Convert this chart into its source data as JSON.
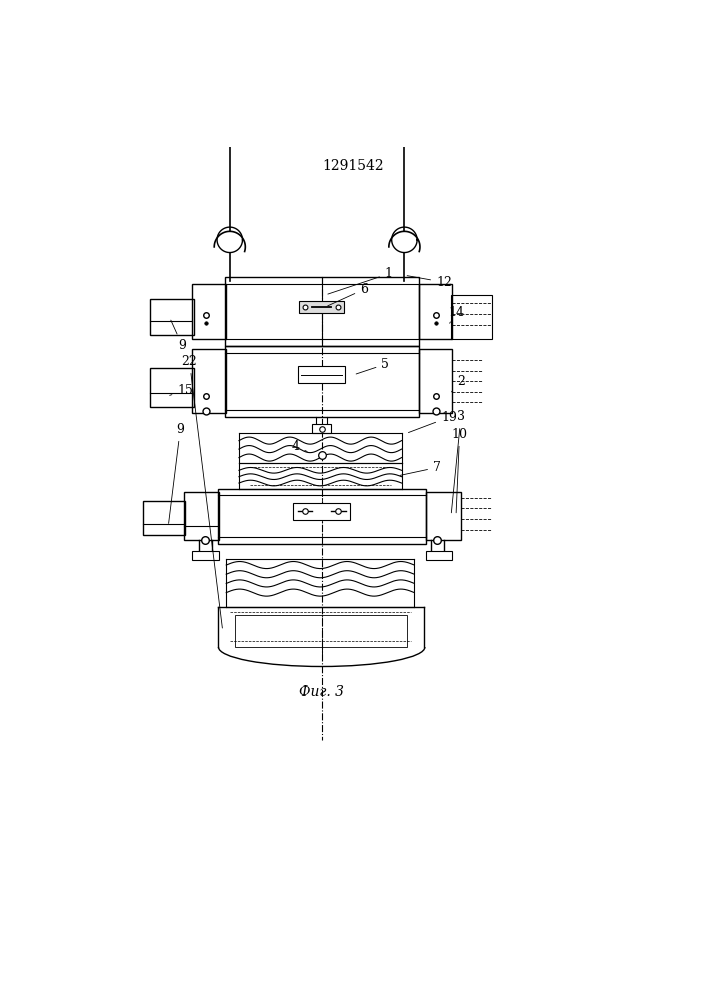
{
  "title": "1291542",
  "caption": "Фиг. 3",
  "bg_color": "#ffffff",
  "line_color": "#000000",
  "fig_width": 7.07,
  "fig_height": 10.0,
  "dpi": 100
}
